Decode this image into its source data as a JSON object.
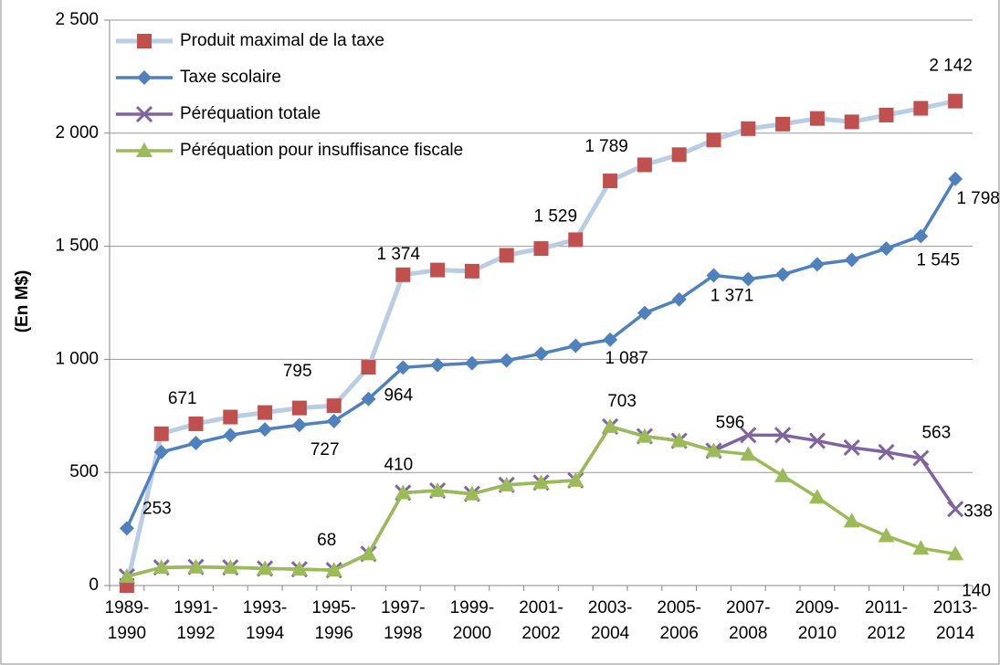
{
  "chart_data": {
    "type": "line",
    "y_label": "(En M$)",
    "categories": [
      "1989-1990",
      null,
      "1991-1992",
      null,
      "1993-1994",
      null,
      "1995-1996",
      null,
      "1997-1998",
      null,
      "1999-2000",
      null,
      "2001-2002",
      null,
      "2003-2004",
      null,
      "2005-2006",
      null,
      "2007-2008",
      null,
      "2009-2010",
      null,
      "2011-2012",
      null,
      "2013-2014"
    ],
    "ylim": [
      0,
      2500
    ],
    "yticks": [
      0,
      500,
      {
        "value": 1000,
        "label": "1 000"
      },
      {
        "value": 1500,
        "label": "1 500"
      },
      {
        "value": 2000,
        "label": "2 000"
      },
      {
        "value": 2500,
        "label": "2 500"
      }
    ],
    "grid": true,
    "legend": "top-left",
    "series": [
      {
        "name": "Produit maximal de la taxe",
        "color": "#b9cde5",
        "marker": "square",
        "marker_color": "#c0504d",
        "values": [
          0,
          671,
          715,
          745,
          765,
          785,
          795,
          965,
          1374,
          1395,
          1390,
          1460,
          1490,
          1529,
          1789,
          1860,
          1905,
          1970,
          2020,
          2040,
          2065,
          2050,
          2080,
          2110,
          2142
        ],
        "value_labels": [
          null,
          "671",
          null,
          null,
          null,
          null,
          "795",
          null,
          "1 374",
          null,
          null,
          null,
          null,
          "1 529",
          "1 789",
          null,
          null,
          null,
          null,
          null,
          null,
          null,
          null,
          null,
          "2 142"
        ]
      },
      {
        "name": "Taxe scolaire",
        "color": "#4f81bd",
        "marker": "diamond",
        "marker_color": "#4f81bd",
        "values": [
          253,
          590,
          630,
          665,
          690,
          710,
          727,
          825,
          964,
          975,
          983,
          995,
          1025,
          1060,
          1087,
          1205,
          1265,
          1371,
          1355,
          1375,
          1420,
          1440,
          1490,
          1545,
          1798
        ],
        "value_labels": [
          "253",
          null,
          null,
          null,
          null,
          null,
          "727",
          null,
          "964",
          null,
          null,
          null,
          null,
          null,
          "1 087",
          null,
          null,
          "1 371",
          null,
          null,
          null,
          null,
          null,
          "1 545",
          "1 798"
        ]
      },
      {
        "name": "Péréquation totale",
        "color": "#8064a2",
        "marker": "x",
        "marker_color": "#8064a2",
        "values": [
          40,
          80,
          82,
          80,
          75,
          72,
          68,
          140,
          410,
          420,
          405,
          445,
          455,
          465,
          703,
          660,
          640,
          596,
          665,
          665,
          640,
          610,
          590,
          563,
          338
        ],
        "value_labels": [
          null,
          null,
          null,
          null,
          null,
          null,
          null,
          null,
          null,
          null,
          null,
          null,
          null,
          null,
          null,
          null,
          null,
          "596",
          null,
          null,
          null,
          null,
          null,
          "563",
          "338"
        ]
      },
      {
        "name": "Péréquation pour insuffisance fiscale",
        "color": "#9bbb59",
        "marker": "triangle",
        "marker_color": "#9bbb59",
        "values": [
          40,
          80,
          82,
          80,
          75,
          72,
          68,
          140,
          410,
          420,
          405,
          445,
          455,
          465,
          703,
          660,
          640,
          596,
          580,
          485,
          390,
          285,
          220,
          165,
          140
        ],
        "value_labels": [
          null,
          null,
          null,
          null,
          null,
          null,
          "68",
          null,
          "410",
          null,
          null,
          null,
          null,
          null,
          "703",
          null,
          null,
          null,
          null,
          null,
          null,
          null,
          null,
          null,
          "140"
        ]
      }
    ]
  }
}
